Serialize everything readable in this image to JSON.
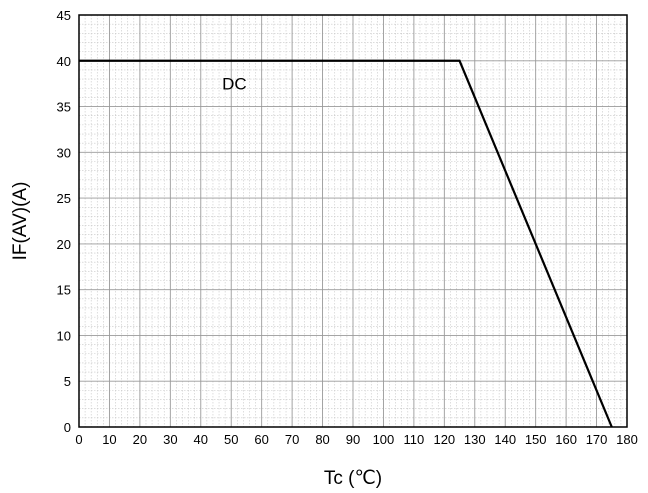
{
  "chart_data": {
    "type": "line",
    "title": "",
    "xlabel": "Tc (℃)",
    "ylabel": "IF(AV)(A)",
    "xlim": [
      0,
      180
    ],
    "ylim": [
      0,
      45
    ],
    "xticks": [
      0,
      10,
      20,
      30,
      40,
      50,
      60,
      70,
      80,
      90,
      100,
      110,
      120,
      130,
      140,
      150,
      160,
      170,
      180
    ],
    "yticks": [
      0,
      5,
      10,
      15,
      20,
      25,
      30,
      35,
      40,
      45
    ],
    "grid": true,
    "series": [
      {
        "name": "DC",
        "x": [
          0,
          125,
          175
        ],
        "y": [
          40,
          40,
          0
        ]
      }
    ],
    "annotations": [
      {
        "text": "DC",
        "x": 47,
        "y": 37.5
      }
    ],
    "colors": {
      "line": "#000000",
      "major_grid": "#9a9a9a",
      "minor_grid": "#c8c8c8",
      "frame": "#000000"
    }
  }
}
